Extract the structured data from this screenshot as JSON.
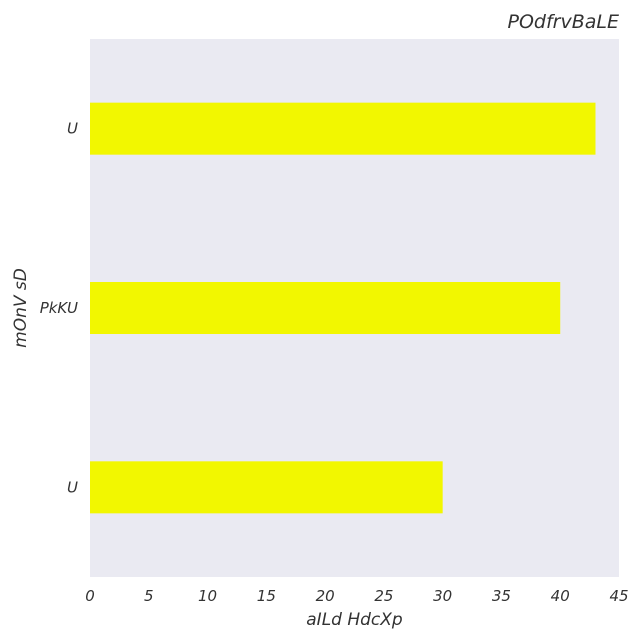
{
  "chart_data": {
    "type": "bar",
    "orientation": "horizontal",
    "title": "POdfrvBaLE",
    "xlabel": "aILd HdcXp",
    "ylabel": "mOnV sD",
    "categories": [
      "U",
      "PkKU",
      "U"
    ],
    "values": [
      43,
      40,
      30
    ],
    "xlim": [
      0,
      45
    ],
    "xticks": [
      "0",
      "5",
      "10",
      "15",
      "20",
      "25",
      "30",
      "35",
      "40",
      "45"
    ],
    "grid": false,
    "bar_color": "#f2f700",
    "plot_background": "#eaeaf2"
  }
}
